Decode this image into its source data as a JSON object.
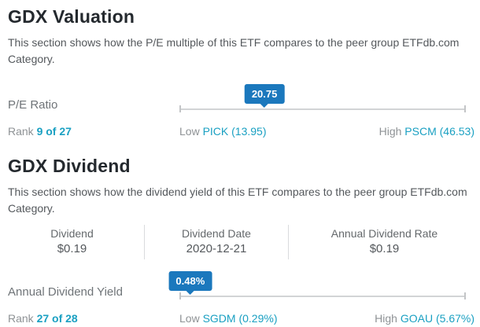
{
  "colors": {
    "accent_teal": "#1aa0c2",
    "tooltip_blue": "#1b78bd",
    "heading_text": "#24292e",
    "track_gray": "#d2d4d6"
  },
  "valuation": {
    "title": "GDX Valuation",
    "description": "This section shows how the P/E multiple of this ETF compares to the peer group ETFdb.com Category.",
    "metric": {
      "label": "P/E Ratio",
      "value": "20.75",
      "value_pct": 29.7,
      "rank_label": "Rank",
      "rank": "9 of 27",
      "low_label": "Low",
      "low": "PICK (13.95)",
      "high_label": "High",
      "high": "PSCM (46.53)"
    }
  },
  "dividend": {
    "title": "GDX Dividend",
    "description": "This section shows how the dividend yield of this ETF compares to the peer group ETFdb.com Category.",
    "stats": [
      {
        "label": "Dividend",
        "value": "$0.19"
      },
      {
        "label": "Dividend Date",
        "value": "2020-12-21"
      },
      {
        "label": "Annual Dividend Rate",
        "value": "$0.19"
      }
    ],
    "metric": {
      "label": "Annual Dividend Yield",
      "value": "0.48%",
      "value_pct": 3.8,
      "rank_label": "Rank",
      "rank": "27 of 28",
      "low_label": "Low",
      "low": "SGDM (0.29%)",
      "high_label": "High",
      "high": "GOAU (5.67%)"
    }
  }
}
